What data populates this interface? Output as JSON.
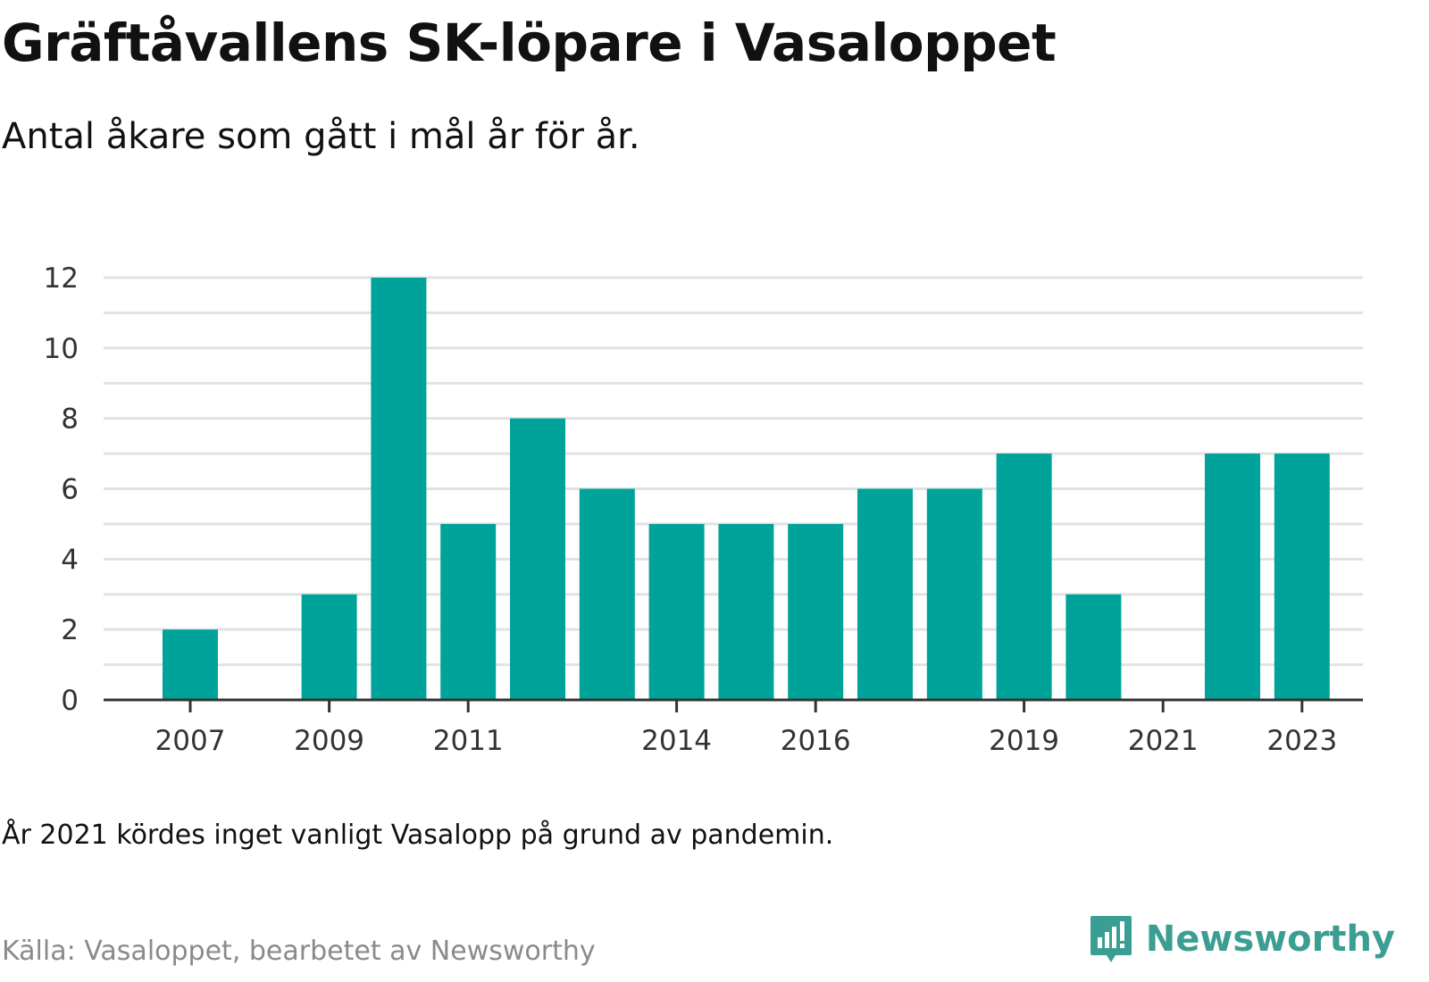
{
  "title": "Gräftåvallens SK-löpare i Vasaloppet",
  "subtitle": "Antal åkare som gått i mål år för år.",
  "note": "År 2021 kördes inget vanligt Vasalopp på grund av pandemin.",
  "source": "Källa: Vasaloppet, bearbetet av Newsworthy",
  "brand": {
    "name": "Newsworthy",
    "icon": "newsworthy-logo-icon",
    "color": "#3a9e92"
  },
  "chart_data": {
    "type": "bar",
    "categories": [
      2007,
      2008,
      2009,
      2010,
      2011,
      2012,
      2013,
      2014,
      2015,
      2016,
      2017,
      2018,
      2019,
      2020,
      2021,
      2022,
      2023
    ],
    "values": [
      2,
      0,
      3,
      12,
      5,
      8,
      6,
      5,
      5,
      5,
      6,
      6,
      7,
      3,
      0,
      7,
      7
    ],
    "x_tick_labels": [
      "2007",
      "2009",
      "2011",
      "2014",
      "2016",
      "2019",
      "2021",
      "2023"
    ],
    "y_ticks": [
      0,
      2,
      4,
      6,
      8,
      10,
      12
    ],
    "ylim": [
      0,
      12
    ],
    "grid": true,
    "bar_color": "#00a39a"
  }
}
